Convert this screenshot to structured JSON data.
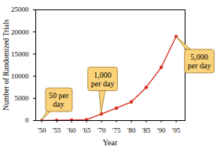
{
  "chart_data": {
    "type": "line",
    "x_label": "Year",
    "y_label": "Number of Randomized Trials",
    "x": [
      1950,
      1955,
      1960,
      1965,
      1970,
      1975,
      1980,
      1985,
      1990,
      1995
    ],
    "values": [
      0,
      50,
      100,
      200,
      1500,
      2800,
      4200,
      7500,
      12000,
      19000
    ],
    "color": "#d92a1c",
    "marker": "circle",
    "xlim": [
      1948,
      1998
    ],
    "xticks": [
      {
        "value": 1950,
        "label": "'50"
      },
      {
        "value": 1955,
        "label": "'55"
      },
      {
        "value": 1960,
        "label": "'60"
      },
      {
        "value": 1965,
        "label": "'65"
      },
      {
        "value": 1970,
        "label": "'70"
      },
      {
        "value": 1975,
        "label": "'75"
      },
      {
        "value": 1980,
        "label": "'80"
      },
      {
        "value": 1985,
        "label": "'85"
      },
      {
        "value": 1990,
        "label": "'90"
      },
      {
        "value": 1995,
        "label": "'95"
      }
    ],
    "ylim": [
      0,
      25000
    ],
    "yticks": [
      0,
      5000,
      10000,
      15000,
      20000,
      25000
    ],
    "grid": false,
    "annotations": [
      {
        "text": [
          "50 per",
          "day"
        ],
        "x": 1950,
        "y": 0
      },
      {
        "text": [
          "1,000",
          "per day"
        ],
        "x": 1970,
        "y": 1500
      },
      {
        "text": [
          "5,000",
          "per day"
        ],
        "x": 1995,
        "y": 19000
      }
    ]
  }
}
